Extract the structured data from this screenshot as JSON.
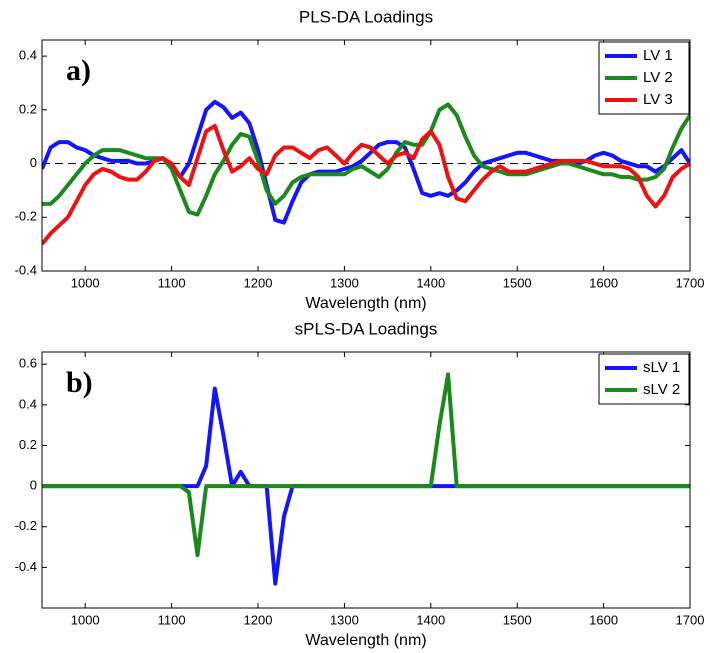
{
  "chart_data": [
    {
      "type": "line",
      "title": "PLS-DA Loadings",
      "xlabel": "Wavelength (nm)",
      "annotation": "a)",
      "x": [
        950,
        960,
        970,
        980,
        990,
        1000,
        1010,
        1020,
        1030,
        1040,
        1050,
        1060,
        1070,
        1080,
        1090,
        1100,
        1110,
        1120,
        1130,
        1140,
        1150,
        1160,
        1170,
        1180,
        1190,
        1200,
        1210,
        1220,
        1230,
        1240,
        1250,
        1260,
        1270,
        1280,
        1290,
        1300,
        1310,
        1320,
        1330,
        1340,
        1350,
        1360,
        1370,
        1380,
        1390,
        1400,
        1410,
        1420,
        1430,
        1440,
        1450,
        1460,
        1470,
        1480,
        1490,
        1500,
        1510,
        1520,
        1530,
        1540,
        1550,
        1560,
        1570,
        1580,
        1590,
        1600,
        1610,
        1620,
        1630,
        1640,
        1650,
        1660,
        1670,
        1680,
        1690,
        1700
      ],
      "series": [
        {
          "name": "LV 1",
          "color": "#1414ff",
          "values": [
            -0.02,
            0.06,
            0.08,
            0.08,
            0.06,
            0.05,
            0.03,
            0.02,
            0.01,
            0.01,
            0.01,
            0.0,
            0.0,
            0.01,
            0.02,
            -0.01,
            -0.05,
            0.0,
            0.1,
            0.2,
            0.23,
            0.21,
            0.17,
            0.19,
            0.15,
            0.05,
            -0.08,
            -0.21,
            -0.22,
            -0.14,
            -0.07,
            -0.04,
            -0.03,
            -0.03,
            -0.03,
            -0.02,
            -0.01,
            0.01,
            0.04,
            0.07,
            0.08,
            0.08,
            0.06,
            -0.02,
            -0.11,
            -0.12,
            -0.11,
            -0.12,
            -0.1,
            -0.07,
            -0.03,
            0.0,
            0.01,
            0.02,
            0.03,
            0.04,
            0.04,
            0.03,
            0.02,
            0.01,
            0.01,
            0.0,
            0.0,
            0.01,
            0.03,
            0.04,
            0.03,
            0.01,
            0.0,
            -0.01,
            -0.01,
            -0.03,
            -0.01,
            0.02,
            0.05,
            0.0
          ]
        },
        {
          "name": "LV 2",
          "color": "#1a8a1a",
          "values": [
            -0.15,
            -0.15,
            -0.12,
            -0.08,
            -0.04,
            0.0,
            0.03,
            0.05,
            0.05,
            0.05,
            0.04,
            0.03,
            0.02,
            0.02,
            0.02,
            -0.02,
            -0.1,
            -0.18,
            -0.19,
            -0.12,
            -0.04,
            0.01,
            0.07,
            0.11,
            0.1,
            0.01,
            -0.1,
            -0.15,
            -0.12,
            -0.07,
            -0.05,
            -0.04,
            -0.04,
            -0.04,
            -0.04,
            -0.04,
            -0.02,
            -0.01,
            -0.03,
            -0.05,
            -0.02,
            0.04,
            0.08,
            0.07,
            0.07,
            0.12,
            0.2,
            0.22,
            0.18,
            0.1,
            0.03,
            -0.01,
            -0.02,
            -0.03,
            -0.04,
            -0.04,
            -0.04,
            -0.03,
            -0.02,
            -0.01,
            0.0,
            0.0,
            -0.01,
            -0.02,
            -0.03,
            -0.04,
            -0.04,
            -0.05,
            -0.05,
            -0.06,
            -0.06,
            -0.05,
            -0.02,
            0.06,
            0.13,
            0.18
          ]
        },
        {
          "name": "LV 3",
          "color": "#ee1111",
          "values": [
            -0.3,
            -0.26,
            -0.23,
            -0.2,
            -0.14,
            -0.08,
            -0.04,
            -0.02,
            -0.03,
            -0.05,
            -0.06,
            -0.06,
            -0.03,
            0.01,
            0.02,
            0.0,
            -0.05,
            -0.08,
            0.02,
            0.12,
            0.14,
            0.05,
            -0.03,
            -0.01,
            0.02,
            -0.02,
            -0.04,
            0.03,
            0.06,
            0.06,
            0.04,
            0.02,
            0.05,
            0.06,
            0.03,
            0.0,
            0.04,
            0.07,
            0.06,
            0.03,
            0.0,
            0.03,
            0.04,
            0.02,
            0.09,
            0.12,
            0.07,
            -0.05,
            -0.13,
            -0.14,
            -0.1,
            -0.06,
            -0.03,
            -0.01,
            -0.03,
            -0.03,
            -0.03,
            -0.02,
            -0.01,
            0.0,
            0.01,
            0.01,
            0.01,
            0.01,
            0.0,
            -0.01,
            -0.01,
            -0.01,
            -0.02,
            -0.05,
            -0.12,
            -0.16,
            -0.12,
            -0.05,
            -0.02,
            0.0
          ]
        }
      ],
      "zero_line": 0,
      "xlim": [
        950,
        1700
      ],
      "xticks": [
        1000,
        1100,
        1200,
        1300,
        1400,
        1500,
        1600,
        1700
      ],
      "ylim": [
        -0.4,
        0.46
      ],
      "yticks": [
        -0.4,
        -0.2,
        0,
        0.2,
        0.4
      ],
      "legend": "upper right"
    },
    {
      "type": "line",
      "title": "sPLS-DA Loadings",
      "xlabel": "Wavelength (nm)",
      "annotation": "b)",
      "x": [
        950,
        960,
        970,
        980,
        990,
        1000,
        1010,
        1020,
        1030,
        1040,
        1050,
        1060,
        1070,
        1080,
        1090,
        1100,
        1110,
        1120,
        1130,
        1140,
        1150,
        1160,
        1170,
        1180,
        1190,
        1200,
        1210,
        1220,
        1230,
        1240,
        1250,
        1260,
        1270,
        1280,
        1290,
        1300,
        1310,
        1320,
        1330,
        1340,
        1350,
        1360,
        1370,
        1380,
        1390,
        1400,
        1410,
        1420,
        1430,
        1440,
        1450,
        1460,
        1470,
        1480,
        1490,
        1500,
        1510,
        1520,
        1530,
        1540,
        1550,
        1560,
        1570,
        1580,
        1590,
        1600,
        1610,
        1620,
        1630,
        1640,
        1650,
        1660,
        1670,
        1680,
        1690,
        1700
      ],
      "series": [
        {
          "name": "sLV 1",
          "color": "#1414ff",
          "values": [
            0,
            0,
            0,
            0,
            0,
            0,
            0,
            0,
            0,
            0,
            0,
            0,
            0,
            0,
            0,
            0,
            0,
            0,
            0,
            0.1,
            0.48,
            0.25,
            0,
            0.07,
            0,
            0,
            0,
            -0.48,
            -0.15,
            0,
            0,
            0,
            0,
            0,
            0,
            0,
            0,
            0,
            0,
            0,
            0,
            0,
            0,
            0,
            0,
            0,
            0,
            0,
            0,
            0,
            0,
            0,
            0,
            0,
            0,
            0,
            0,
            0,
            0,
            0,
            0,
            0,
            0,
            0,
            0,
            0,
            0,
            0,
            0,
            0,
            0,
            0,
            0,
            0,
            0,
            0
          ]
        },
        {
          "name": "sLV 2",
          "color": "#1a8a1a",
          "values": [
            0,
            0,
            0,
            0,
            0,
            0,
            0,
            0,
            0,
            0,
            0,
            0,
            0,
            0,
            0,
            0,
            0,
            -0.03,
            -0.34,
            0,
            0,
            0,
            0,
            0,
            0,
            0,
            0,
            0,
            0,
            0,
            0,
            0,
            0,
            0,
            0,
            0,
            0,
            0,
            0,
            0,
            0,
            0,
            0,
            0,
            0,
            0,
            0.3,
            0.55,
            0,
            0,
            0,
            0,
            0,
            0,
            0,
            0,
            0,
            0,
            0,
            0,
            0,
            0,
            0,
            0,
            0,
            0,
            0,
            0,
            0,
            0,
            0,
            0,
            0,
            0,
            0,
            0
          ]
        }
      ],
      "xlim": [
        950,
        1700
      ],
      "xticks": [
        1000,
        1100,
        1200,
        1300,
        1400,
        1500,
        1600,
        1700
      ],
      "ylim": [
        -0.6,
        0.66
      ],
      "yticks": [
        -0.4,
        -0.2,
        0,
        0.2,
        0.4,
        0.6
      ],
      "legend": "upper right"
    }
  ]
}
